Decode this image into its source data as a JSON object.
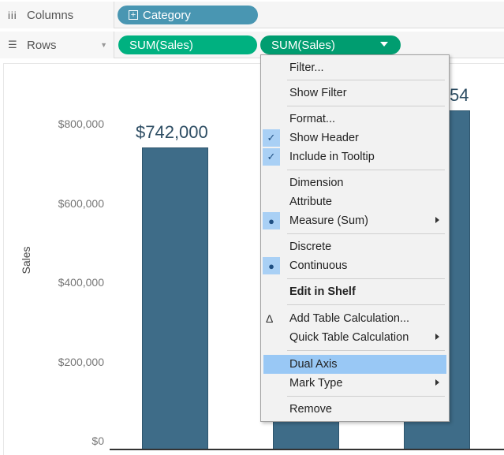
{
  "shelves": {
    "columns": {
      "label": "Columns",
      "icon": "columns-icon",
      "pill": "Category"
    },
    "rows": {
      "label": "Rows",
      "icon": "rows-icon",
      "pills": [
        "SUM(Sales)",
        "SUM(Sales)"
      ]
    }
  },
  "chart_data": {
    "type": "bar",
    "ylabel": "Sales",
    "ylim": [
      0,
      800000
    ],
    "yticks": [
      "$0",
      "$200,000",
      "$400,000",
      "$600,000",
      "$800,000"
    ],
    "bars": [
      {
        "value": 742000,
        "label": "$742,000"
      },
      {
        "value": 719047,
        "label": ""
      },
      {
        "value": 836154,
        "label": "54"
      }
    ],
    "bar_color": "#3e6c88"
  },
  "menu": {
    "filter": "Filter...",
    "show_filter": "Show Filter",
    "format": "Format...",
    "show_header": "Show Header",
    "include_tooltip": "Include in Tooltip",
    "dimension": "Dimension",
    "attribute": "Attribute",
    "measure": "Measure (Sum)",
    "discrete": "Discrete",
    "continuous": "Continuous",
    "edit_shelf": "Edit in Shelf",
    "add_table_calc": "Add Table Calculation...",
    "quick_table_calc": "Quick Table Calculation",
    "dual_axis": "Dual Axis",
    "mark_type": "Mark Type",
    "remove": "Remove",
    "check_glyph": "✓",
    "dot_glyph": "●",
    "delta_glyph": "Δ",
    "highlight_color": "#99c8f5"
  }
}
